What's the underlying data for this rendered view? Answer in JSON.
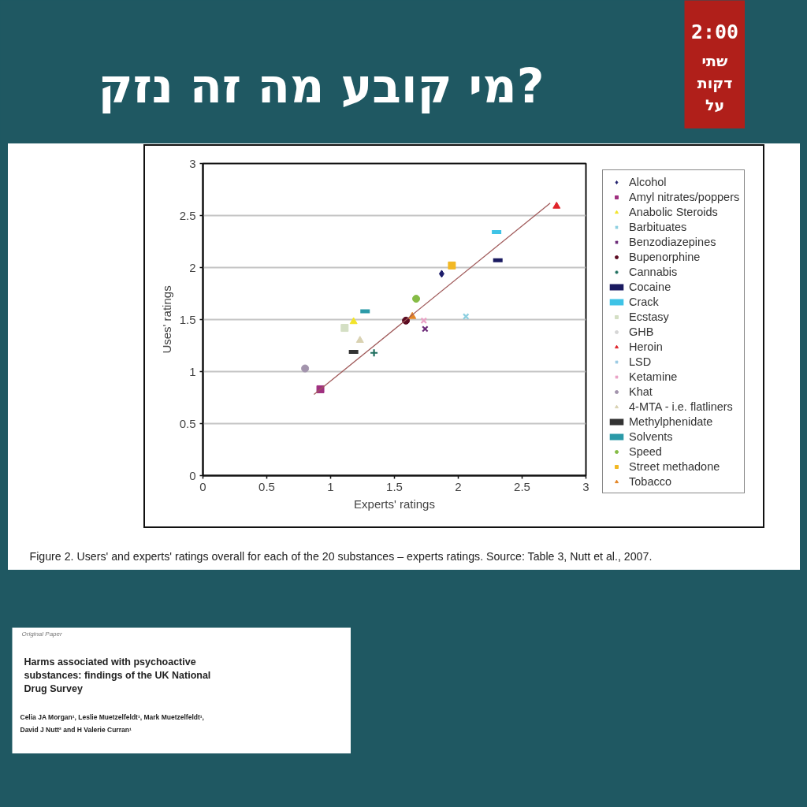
{
  "chart_data": {
    "type": "scatter",
    "title": "מי קובע מה זה נזק?",
    "xlabel": "Experts' ratings",
    "ylabel": "Uses' ratings",
    "annotations": [
      "Figure 2. Users' and experts' ratings overall for each of the 20 substances – experts ratings. Source: Table 3, Nutt et al., 2007.",
      "2:00",
      "שתי דקות על",
      "Original Paper",
      "Harms associated with psychoactive substances: findings of the UK National Drug Survey",
      "Celia JA Morgan¹, Leslie Muetzelfeldt¹, Mark Muetzelfeldt¹, David J Nutt² and H Valerie Curran¹"
    ],
    "xlim": [
      0,
      3
    ],
    "ylim": [
      0,
      3
    ],
    "xticks": [
      0,
      0.5,
      1,
      1.5,
      2,
      2.5,
      3
    ],
    "yticks": [
      0,
      0.5,
      1,
      1.5,
      2,
      2.5,
      3
    ],
    "grid": "y",
    "legend": "right",
    "series": [
      {
        "name": "Alcohol",
        "color": "#1c1c6b",
        "marker": "diamond",
        "x": [
          1.87
        ],
        "values": [
          1.94
        ]
      },
      {
        "name": "Amyl nitrates/poppers",
        "color": "#a03080",
        "marker": "square",
        "x": [
          0.92
        ],
        "values": [
          0.83
        ]
      },
      {
        "name": "Anabolic Steroids",
        "color": "#f2e42a",
        "marker": "triangle",
        "x": [
          1.18
        ],
        "values": [
          1.48
        ]
      },
      {
        "name": "Barbituates",
        "color": "#8ccfe0",
        "marker": "x",
        "x": [
          2.06
        ],
        "values": [
          1.53
        ]
      },
      {
        "name": "Benzodiazepines",
        "color": "#6b2a78",
        "marker": "x",
        "x": [
          1.74
        ],
        "values": [
          1.41
        ]
      },
      {
        "name": "Bupenorphine",
        "color": "#5c0c22",
        "marker": "circle",
        "x": [
          1.59
        ],
        "values": [
          1.49
        ]
      },
      {
        "name": "Cannabis",
        "color": "#1e6e5e",
        "marker": "cross",
        "x": [
          1.34
        ],
        "values": [
          1.18
        ]
      },
      {
        "name": "Cocaine",
        "color": "#1a1a60",
        "x": [
          2.31
        ],
        "values": [
          2.07
        ]
      },
      {
        "name": "Crack",
        "color": "#3ec3e6",
        "x": [
          2.3
        ],
        "values": [
          2.34
        ]
      },
      {
        "name": "Ecstasy",
        "color": "#d4dfc4",
        "marker": "square",
        "x": [
          1.11
        ],
        "values": [
          1.42
        ]
      },
      {
        "name": "GHB",
        "color": "#d6d6d6",
        "marker": "circle",
        "x": [
          null
        ],
        "values": [
          null
        ]
      },
      {
        "name": "Heroin",
        "color": "#e0242a",
        "marker": "triangle",
        "x": [
          2.77
        ],
        "values": [
          2.59
        ]
      },
      {
        "name": "LSD",
        "color": "#9ccbe4",
        "marker": "x",
        "x": [
          null
        ],
        "values": [
          null
        ]
      },
      {
        "name": "Ketamine",
        "color": "#eaa2c6",
        "marker": "x",
        "x": [
          1.73
        ],
        "values": [
          1.49
        ]
      },
      {
        "name": "Khat",
        "color": "#a394ad",
        "marker": "circle",
        "x": [
          0.8
        ],
        "values": [
          1.03
        ]
      },
      {
        "name": "4-MTA - i.e. flatliners",
        "color": "#d9d2b2",
        "marker": "triangle",
        "x": [
          1.23
        ],
        "values": [
          1.3
        ]
      },
      {
        "name": "Methylphenidate",
        "color": "#333333",
        "x": [
          1.18
        ],
        "values": [
          1.19
        ]
      },
      {
        "name": "Solvents",
        "color": "#2b9aa8",
        "x": [
          1.27
        ],
        "values": [
          1.58
        ]
      },
      {
        "name": "Speed",
        "color": "#86bc46",
        "marker": "circle",
        "x": [
          1.67
        ],
        "values": [
          1.7
        ]
      },
      {
        "name": "Street methadone",
        "color": "#f2b824",
        "marker": "square",
        "x": [
          1.95
        ],
        "values": [
          2.02
        ]
      },
      {
        "name": "Tobacco",
        "color": "#e48624",
        "marker": "triangle",
        "x": [
          1.64
        ],
        "values": [
          1.53
        ]
      },
      {
        "type": "line",
        "color": "#a05a5a",
        "x": [
          0.87,
          2.72
        ],
        "values": [
          0.78,
          2.62
        ]
      }
    ]
  }
}
